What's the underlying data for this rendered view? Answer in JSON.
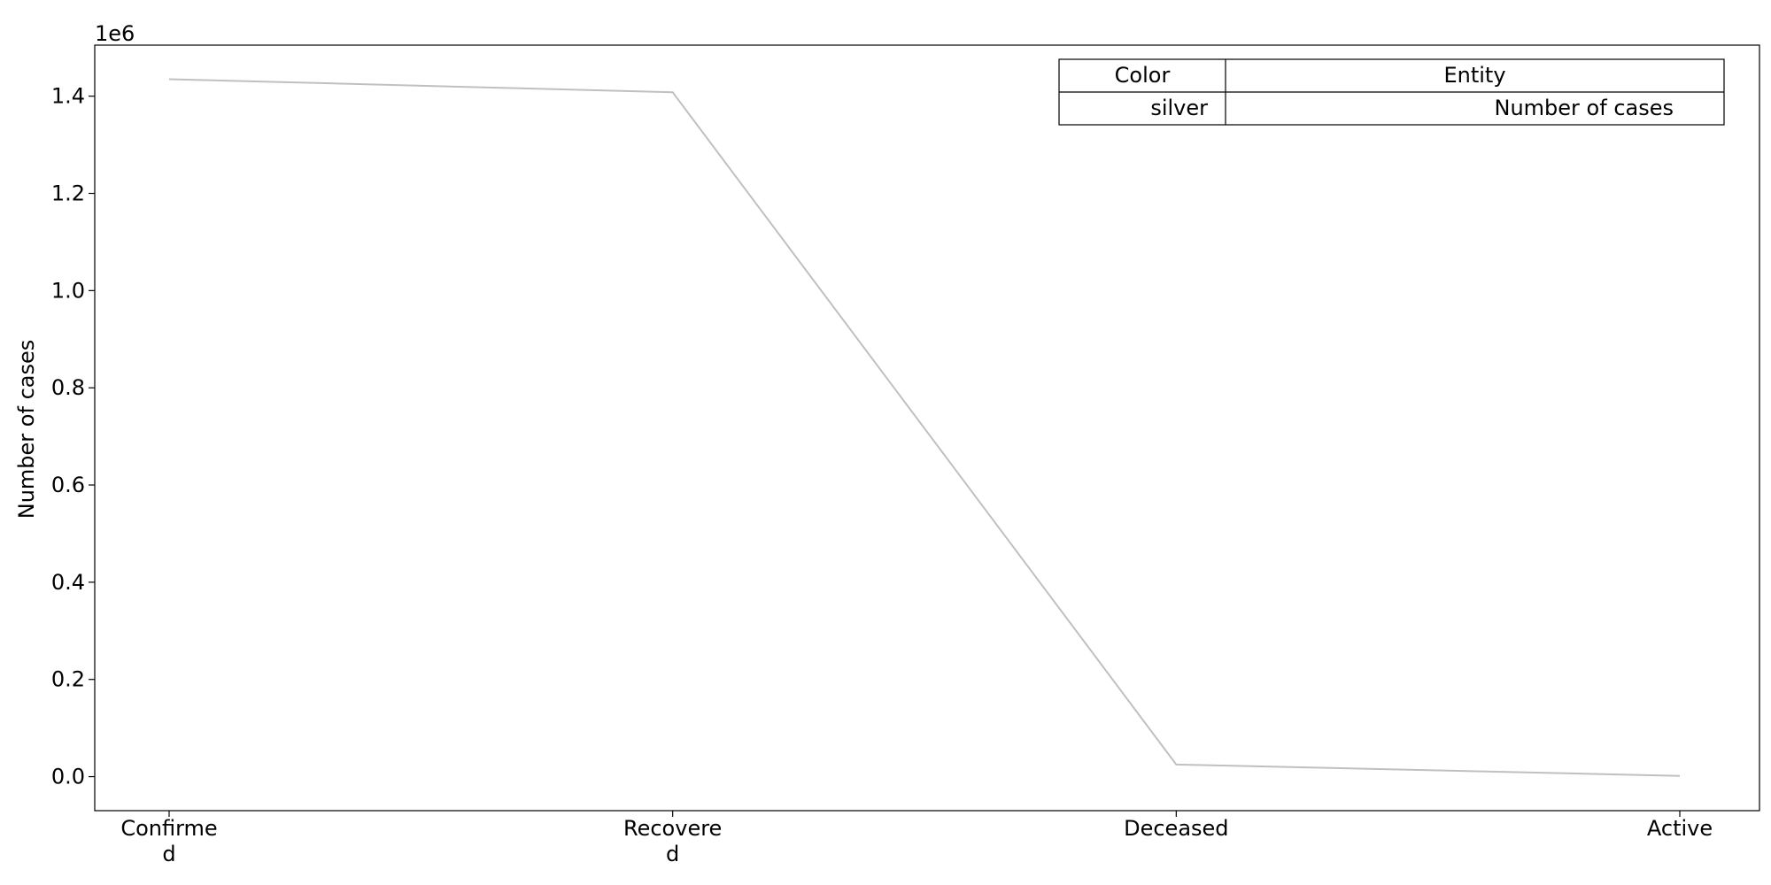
{
  "chart_data": {
    "type": "line",
    "categories": [
      [
        "Confirme",
        "d"
      ],
      [
        "Recovere",
        "d"
      ],
      [
        "Deceased"
      ],
      [
        "Active"
      ]
    ],
    "series": [
      {
        "values": [
          1435000,
          1408000,
          25000,
          1500
        ],
        "color": "#c0c0c0"
      }
    ],
    "xlabel": "",
    "ylabel": "Number of cases",
    "y_offset_label": "1e6",
    "y_ticks": [
      0,
      200000,
      400000,
      600000,
      800000,
      1000000,
      1200000,
      1400000
    ],
    "y_tick_labels": [
      "0.0",
      "0.2",
      "0.4",
      "0.6",
      "0.8",
      "1.0",
      "1.2",
      "1.4"
    ],
    "ylim": [
      -70000,
      1505000
    ],
    "grid": false,
    "legend_table": {
      "placement": "top-right",
      "headers": [
        "Color",
        "Entity"
      ],
      "rows": [
        [
          "silver",
          "Number of cases"
        ]
      ]
    }
  }
}
